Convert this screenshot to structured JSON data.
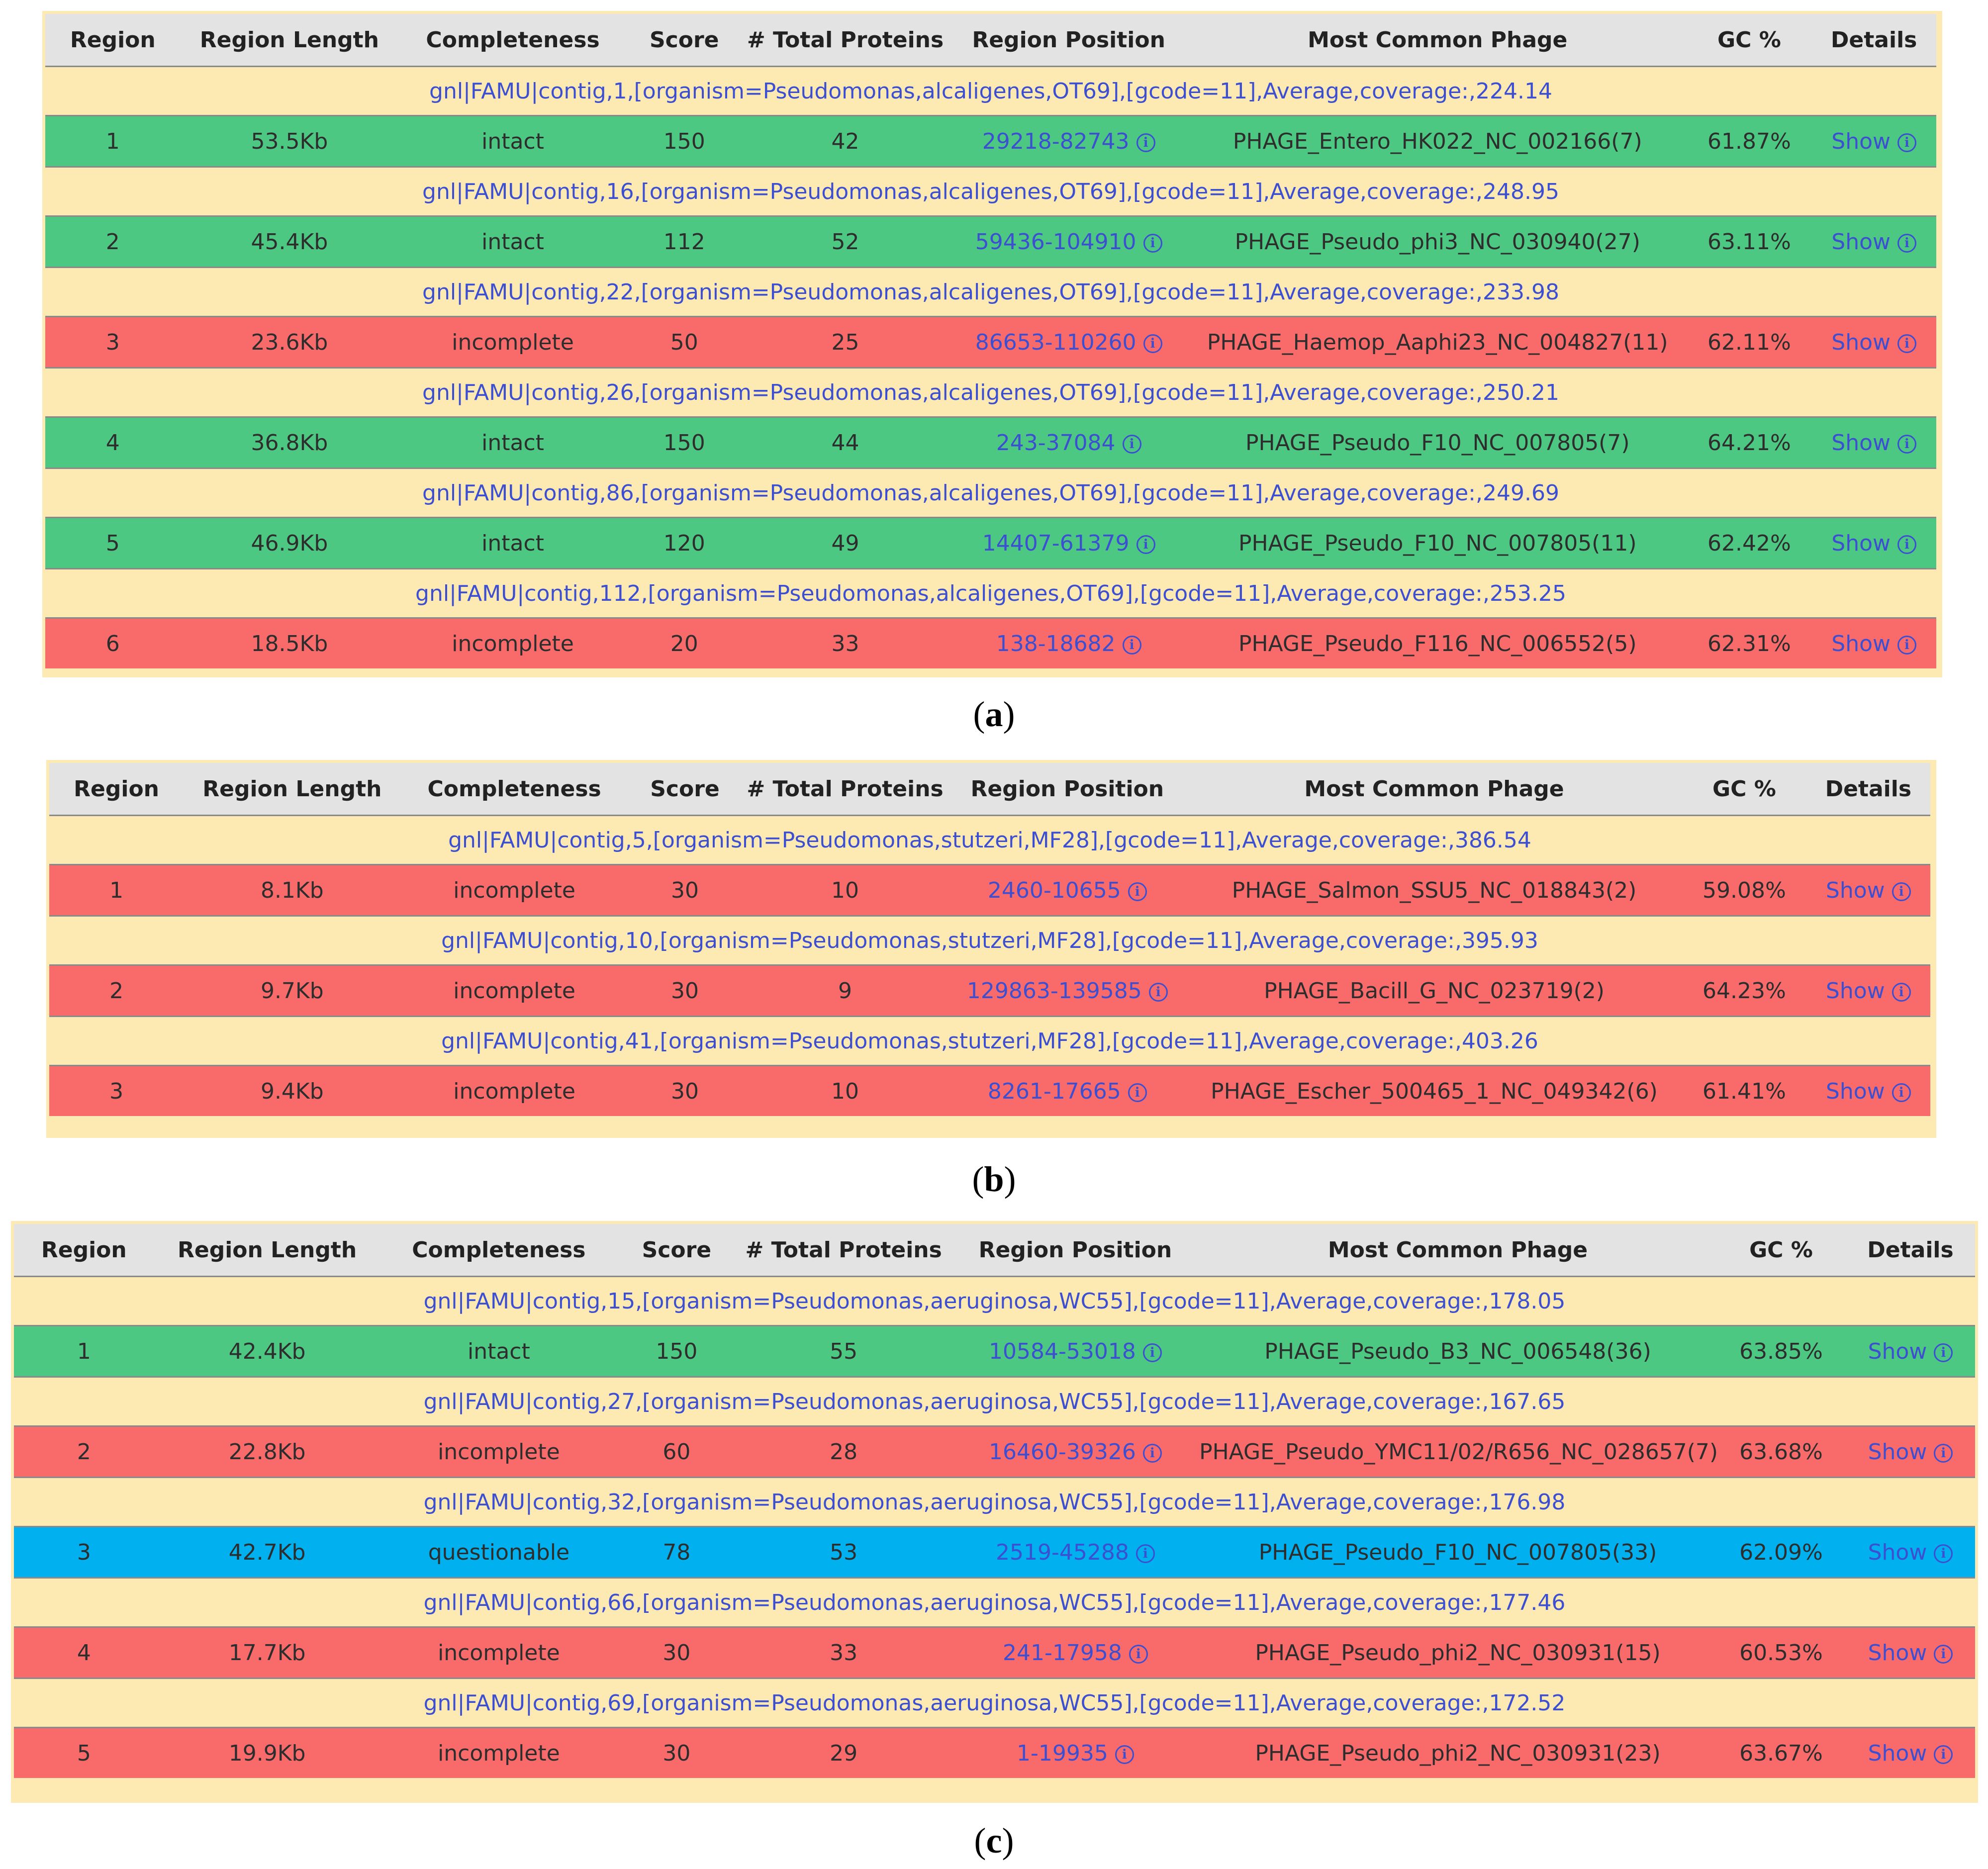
{
  "headers": [
    "Region",
    "Region Length",
    "Completeness",
    "Score",
    "# Total Proteins",
    "Region Position",
    "Most Common Phage",
    "GC %",
    "Details"
  ],
  "show_label": "Show",
  "info_icon": "i",
  "colors": {
    "intact": "#4dc882",
    "incomplete": "#f96b6b",
    "questionable": "#00b0ef",
    "contig_bg": "#fde9b2",
    "header_bg": "#e3e3e3",
    "link": "#3d4fd1"
  },
  "panels": [
    {
      "label": "a",
      "rows": [
        {
          "contig": "gnl|FAMU|contig,1,[organism=Pseudomonas,alcaligenes,OT69],[gcode=11],Average,coverage:,224.14",
          "region": "1",
          "length": "53.5Kb",
          "completeness": "intact",
          "score": "150",
          "proteins": "42",
          "position": "29218-82743",
          "phage": "PHAGE_Entero_HK022_NC_002166(7)",
          "gc": "61.87%"
        },
        {
          "contig": "gnl|FAMU|contig,16,[organism=Pseudomonas,alcaligenes,OT69],[gcode=11],Average,coverage:,248.95",
          "region": "2",
          "length": "45.4Kb",
          "completeness": "intact",
          "score": "112",
          "proteins": "52",
          "position": "59436-104910",
          "phage": "PHAGE_Pseudo_phi3_NC_030940(27)",
          "gc": "63.11%"
        },
        {
          "contig": "gnl|FAMU|contig,22,[organism=Pseudomonas,alcaligenes,OT69],[gcode=11],Average,coverage:,233.98",
          "region": "3",
          "length": "23.6Kb",
          "completeness": "incomplete",
          "score": "50",
          "proteins": "25",
          "position": "86653-110260",
          "phage": "PHAGE_Haemop_Aaphi23_NC_004827(11)",
          "gc": "62.11%"
        },
        {
          "contig": "gnl|FAMU|contig,26,[organism=Pseudomonas,alcaligenes,OT69],[gcode=11],Average,coverage:,250.21",
          "region": "4",
          "length": "36.8Kb",
          "completeness": "intact",
          "score": "150",
          "proteins": "44",
          "position": "243-37084",
          "phage": "PHAGE_Pseudo_F10_NC_007805(7)",
          "gc": "64.21%"
        },
        {
          "contig": "gnl|FAMU|contig,86,[organism=Pseudomonas,alcaligenes,OT69],[gcode=11],Average,coverage:,249.69",
          "region": "5",
          "length": "46.9Kb",
          "completeness": "intact",
          "score": "120",
          "proteins": "49",
          "position": "14407-61379",
          "phage": "PHAGE_Pseudo_F10_NC_007805(11)",
          "gc": "62.42%"
        },
        {
          "contig": "gnl|FAMU|contig,112,[organism=Pseudomonas,alcaligenes,OT69],[gcode=11],Average,coverage:,253.25",
          "region": "6",
          "length": "18.5Kb",
          "completeness": "incomplete",
          "score": "20",
          "proteins": "33",
          "position": "138-18682",
          "phage": "PHAGE_Pseudo_F116_NC_006552(5)",
          "gc": "62.31%"
        }
      ]
    },
    {
      "label": "b",
      "rows": [
        {
          "contig": "gnl|FAMU|contig,5,[organism=Pseudomonas,stutzeri,MF28],[gcode=11],Average,coverage:,386.54",
          "region": "1",
          "length": "8.1Kb",
          "completeness": "incomplete",
          "score": "30",
          "proteins": "10",
          "position": "2460-10655",
          "phage": "PHAGE_Salmon_SSU5_NC_018843(2)",
          "gc": "59.08%"
        },
        {
          "contig": "gnl|FAMU|contig,10,[organism=Pseudomonas,stutzeri,MF28],[gcode=11],Average,coverage:,395.93",
          "region": "2",
          "length": "9.7Kb",
          "completeness": "incomplete",
          "score": "30",
          "proteins": "9",
          "position": "129863-139585",
          "phage": "PHAGE_Bacill_G_NC_023719(2)",
          "gc": "64.23%"
        },
        {
          "contig": "gnl|FAMU|contig,41,[organism=Pseudomonas,stutzeri,MF28],[gcode=11],Average,coverage:,403.26",
          "region": "3",
          "length": "9.4Kb",
          "completeness": "incomplete",
          "score": "30",
          "proteins": "10",
          "position": "8261-17665",
          "phage": "PHAGE_Escher_500465_1_NC_049342(6)",
          "gc": "61.41%"
        }
      ]
    },
    {
      "label": "c",
      "rows": [
        {
          "contig": "gnl|FAMU|contig,15,[organism=Pseudomonas,aeruginosa,WC55],[gcode=11],Average,coverage:,178.05",
          "region": "1",
          "length": "42.4Kb",
          "completeness": "intact",
          "score": "150",
          "proteins": "55",
          "position": "10584-53018",
          "phage": "PHAGE_Pseudo_B3_NC_006548(36)",
          "gc": "63.85%"
        },
        {
          "contig": "gnl|FAMU|contig,27,[organism=Pseudomonas,aeruginosa,WC55],[gcode=11],Average,coverage:,167.65",
          "region": "2",
          "length": "22.8Kb",
          "completeness": "incomplete",
          "score": "60",
          "proteins": "28",
          "position": "16460-39326",
          "phage": "PHAGE_Pseudo_YMC11/02/R656_NC_028657(7)",
          "gc": "63.68%"
        },
        {
          "contig": "gnl|FAMU|contig,32,[organism=Pseudomonas,aeruginosa,WC55],[gcode=11],Average,coverage:,176.98",
          "region": "3",
          "length": "42.7Kb",
          "completeness": "questionable",
          "score": "78",
          "proteins": "53",
          "position": "2519-45288",
          "phage": "PHAGE_Pseudo_F10_NC_007805(33)",
          "gc": "62.09%"
        },
        {
          "contig": "gnl|FAMU|contig,66,[organism=Pseudomonas,aeruginosa,WC55],[gcode=11],Average,coverage:,177.46",
          "region": "4",
          "length": "17.7Kb",
          "completeness": "incomplete",
          "score": "30",
          "proteins": "33",
          "position": "241-17958",
          "phage": "PHAGE_Pseudo_phi2_NC_030931(15)",
          "gc": "60.53%"
        },
        {
          "contig": "gnl|FAMU|contig,69,[organism=Pseudomonas,aeruginosa,WC55],[gcode=11],Average,coverage:,172.52",
          "region": "5",
          "length": "19.9Kb",
          "completeness": "incomplete",
          "score": "30",
          "proteins": "29",
          "position": "1-19935",
          "phage": "PHAGE_Pseudo_phi2_NC_030931(23)",
          "gc": "63.67%"
        }
      ]
    }
  ]
}
